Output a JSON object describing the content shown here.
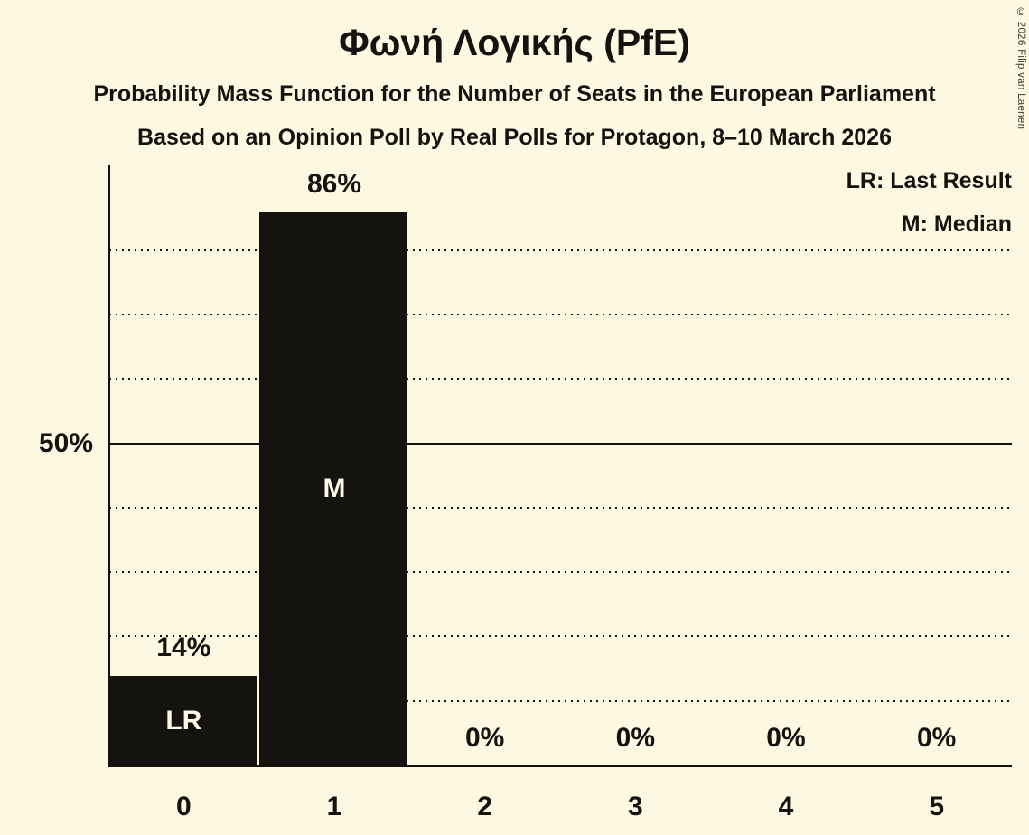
{
  "title": "Φωνή Λογικής (PfE)",
  "subtitle1": "Probability Mass Function for the Number of Seats in the European Parliament",
  "subtitle2": "Based on an Opinion Poll by Real Polls for Protagon, 8–10 March 2026",
  "copyright": "© 2026 Filip van Laenen",
  "legend": {
    "lr": "LR: Last Result",
    "m": "M: Median"
  },
  "y_axis": {
    "label_50": "50%"
  },
  "colors": {
    "background": "#FDF8E1",
    "ink": "#141310"
  },
  "chart_data": {
    "type": "bar",
    "title": "Φωνή Λογικής (PfE)",
    "xlabel": "",
    "ylabel": "",
    "categories": [
      "0",
      "1",
      "2",
      "3",
      "4",
      "5"
    ],
    "values": [
      14,
      86,
      0,
      0,
      0,
      0
    ],
    "bar_labels": [
      "14%",
      "86%",
      "0%",
      "0%",
      "0%",
      "0%"
    ],
    "in_bar_annotations": [
      "LR",
      "M",
      "",
      "",
      "",
      ""
    ],
    "ylim": [
      0,
      93
    ],
    "y_tick_labels": [
      "50%"
    ],
    "gridlines_dotted_pct": [
      10,
      20,
      30,
      40,
      60,
      70,
      80
    ],
    "gridline_solid_pct": 50,
    "grid": true,
    "legend_position": "top-right",
    "legend_entries": [
      "LR: Last Result",
      "M: Median"
    ]
  }
}
